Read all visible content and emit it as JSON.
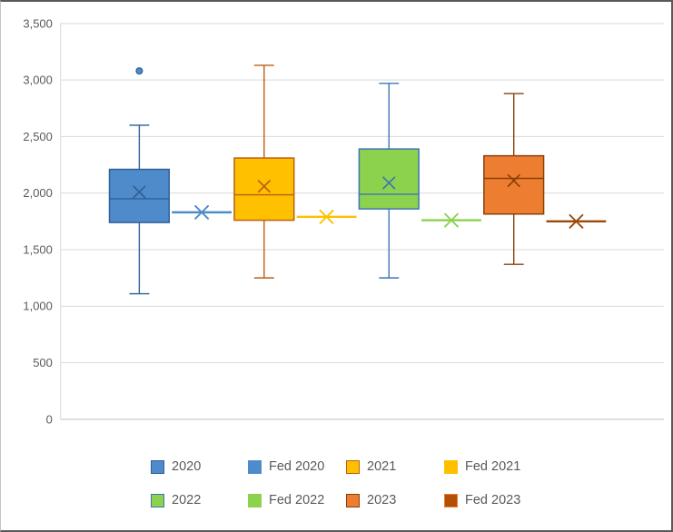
{
  "chart_data": {
    "type": "box",
    "title": "",
    "xlabel": "",
    "ylabel": "",
    "ylim": [
      0,
      3500
    ],
    "grid": true,
    "legend_position": "bottom-two-rows",
    "gridline_color": "#D9D9D9",
    "axis_color": "#BFBFBF",
    "tick_label_color": "#595959",
    "legend_text_color": "#595959",
    "yticks": [
      {
        "value": 0,
        "label": "0"
      },
      {
        "value": 500,
        "label": "500"
      },
      {
        "value": 1000,
        "label": "1,000"
      },
      {
        "value": 1500,
        "label": "1,500"
      },
      {
        "value": 2000,
        "label": "2,000"
      },
      {
        "value": 2500,
        "label": "2,500"
      },
      {
        "value": 3000,
        "label": "3,000"
      },
      {
        "value": 3500,
        "label": "3,500"
      }
    ],
    "series": [
      {
        "name": "2020",
        "kind": "box",
        "fill": "#4F8BCB",
        "stroke": "#2E5F96",
        "whisker_low": 1110,
        "q1": 1740,
        "median": 1950,
        "q3": 2210,
        "whisker_high": 2600,
        "mean": 2010,
        "outliers": [
          3080
        ]
      },
      {
        "name": "Fed 2020",
        "kind": "flat_line",
        "color": "#4F8BCB",
        "value": 1830,
        "swatch_fill": "#4F8BCB",
        "swatch_stroke": "#4F8BCB"
      },
      {
        "name": "2021",
        "kind": "box",
        "fill": "#FFC000",
        "stroke": "#BC5E11",
        "whisker_low": 1250,
        "q1": 1760,
        "median": 1985,
        "q3": 2310,
        "whisker_high": 3130,
        "mean": 2060,
        "outliers": []
      },
      {
        "name": "Fed 2021",
        "kind": "flat_line",
        "color": "#FFC000",
        "value": 1790,
        "swatch_fill": "#FFC000",
        "swatch_stroke": "#FFC000"
      },
      {
        "name": "2022",
        "kind": "box",
        "fill": "#8CD24D",
        "stroke": "#3F74B6",
        "whisker_low": 1250,
        "q1": 1860,
        "median": 1990,
        "q3": 2390,
        "whisker_high": 2970,
        "mean": 2090,
        "outliers": []
      },
      {
        "name": "Fed 2022",
        "kind": "flat_line",
        "color": "#8CD24D",
        "value": 1760,
        "swatch_fill": "#8CD24D",
        "swatch_stroke": "#8CD24D"
      },
      {
        "name": "2023",
        "kind": "box",
        "fill": "#ED7D31",
        "stroke": "#8A4009",
        "whisker_low": 1370,
        "q1": 1815,
        "median": 2130,
        "q3": 2330,
        "whisker_high": 2880,
        "mean": 2110,
        "outliers": []
      },
      {
        "name": "Fed 2023",
        "kind": "flat_line",
        "color": "#9C4A08",
        "value": 1750,
        "swatch_fill": "#B25008",
        "swatch_stroke": "#ED7D31"
      }
    ]
  }
}
